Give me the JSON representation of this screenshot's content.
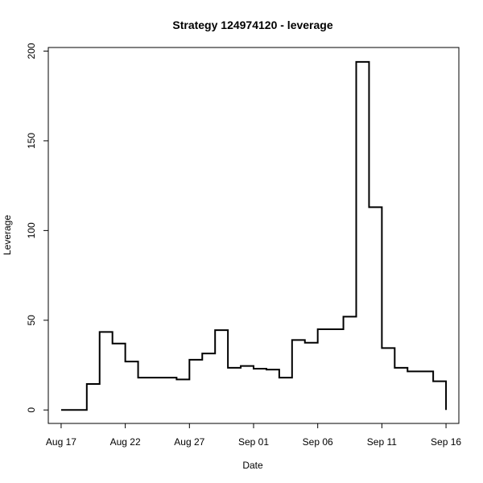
{
  "chart_data": {
    "type": "line",
    "subtype": "step",
    "title": "Strategy 124974120 - leverage",
    "xlabel": "Date",
    "ylabel": "Leverage",
    "x_ticks": [
      {
        "date": "2023-08-17",
        "label": "Aug 17"
      },
      {
        "date": "2023-08-22",
        "label": "Aug 22"
      },
      {
        "date": "2023-08-27",
        "label": "Aug 27"
      },
      {
        "date": "2023-09-01",
        "label": "Sep 01"
      },
      {
        "date": "2023-09-06",
        "label": "Sep 06"
      },
      {
        "date": "2023-09-11",
        "label": "Sep 11"
      },
      {
        "date": "2023-09-16",
        "label": "Sep 16"
      }
    ],
    "y_ticks": [
      0,
      50,
      100,
      150,
      200
    ],
    "xlim": [
      "2023-08-16",
      "2023-09-17"
    ],
    "ylim": [
      -7.5,
      202
    ],
    "grid": false,
    "series": [
      {
        "color": "#000000",
        "x": [
          "2023-08-17",
          "2023-08-18",
          "2023-08-19",
          "2023-08-20",
          "2023-08-21",
          "2023-08-22",
          "2023-08-23",
          "2023-08-24",
          "2023-08-25",
          "2023-08-26",
          "2023-08-27",
          "2023-08-28",
          "2023-08-29",
          "2023-08-30",
          "2023-08-31",
          "2023-09-01",
          "2023-09-02",
          "2023-09-03",
          "2023-09-04",
          "2023-09-05",
          "2023-09-06",
          "2023-09-07",
          "2023-09-08",
          "2023-09-09",
          "2023-09-10",
          "2023-09-11",
          "2023-09-12",
          "2023-09-13",
          "2023-09-14",
          "2023-09-15",
          "2023-09-16"
        ],
        "y": [
          0,
          0,
          14.5,
          43.5,
          37,
          27,
          18,
          18,
          18,
          17,
          28,
          31.5,
          44.5,
          23.5,
          24.5,
          23,
          22.5,
          18,
          39,
          37.5,
          45,
          45,
          52,
          194,
          113,
          34.5,
          23.5,
          21.5,
          21.5,
          16,
          0
        ]
      }
    ]
  }
}
